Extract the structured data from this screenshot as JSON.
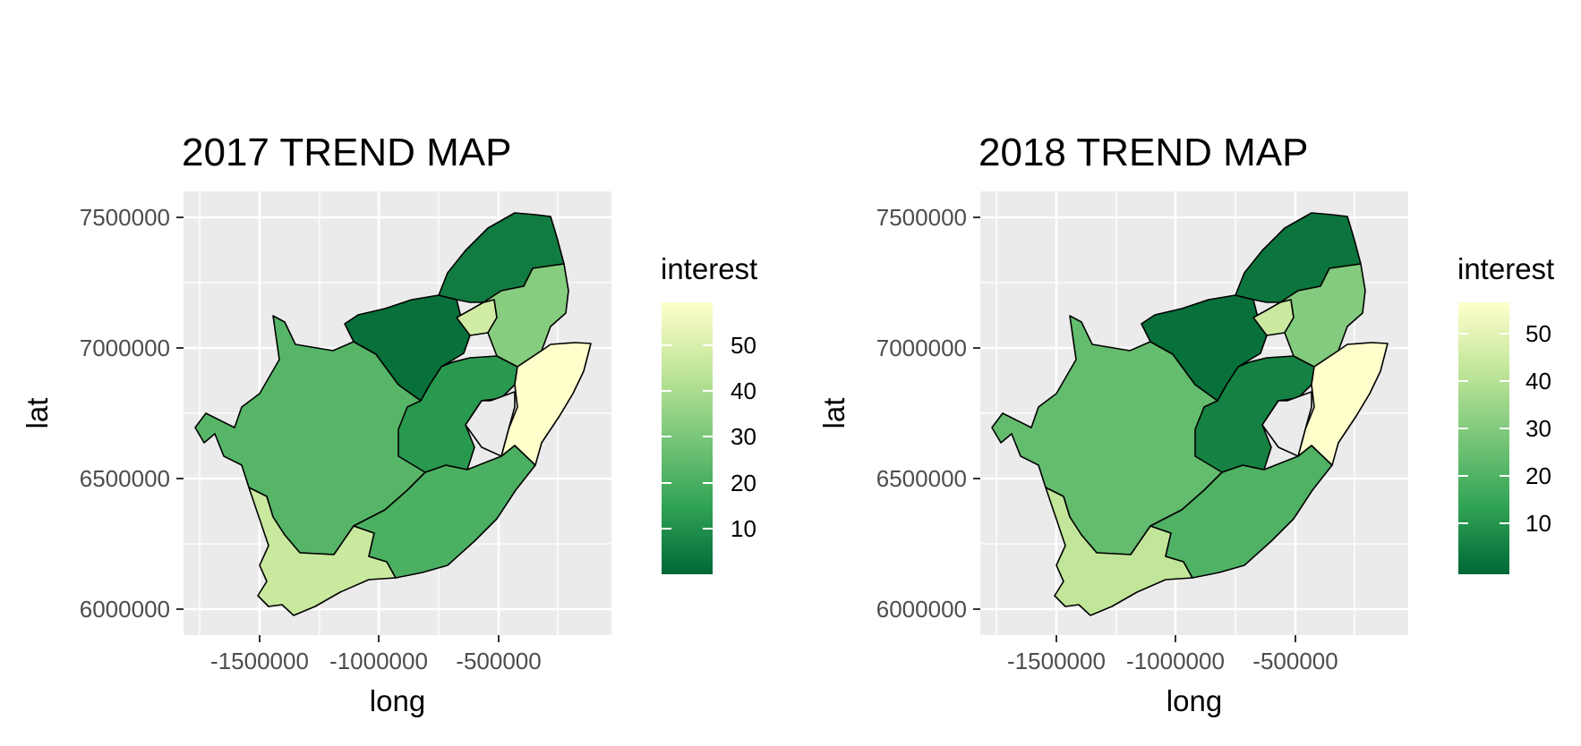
{
  "maps": [
    {
      "title": "2017 TREND MAP",
      "xlabel": "long",
      "ylabel": "lat",
      "x_ticks": [
        "-1500000",
        "-1000000",
        "-500000"
      ],
      "y_ticks": [
        "6000000",
        "6500000",
        "7000000",
        "7500000"
      ],
      "legend": {
        "title": "interest",
        "ticks": [
          "10",
          "20",
          "30",
          "40",
          "50"
        ]
      },
      "regions": [
        {
          "id": "western-cape",
          "interest": 45
        },
        {
          "id": "northern-cape",
          "interest": 22
        },
        {
          "id": "eastern-cape",
          "interest": 20
        },
        {
          "id": "free-state",
          "interest": 12
        },
        {
          "id": "north-west",
          "interest": 2
        },
        {
          "id": "limpopo",
          "interest": 5
        },
        {
          "id": "gauteng",
          "interest": 47
        },
        {
          "id": "mpumalanga",
          "interest": 32
        },
        {
          "id": "kwazulu-natal",
          "interest": 58
        }
      ]
    },
    {
      "title": "2018 TREND MAP",
      "xlabel": "long",
      "ylabel": "lat",
      "x_ticks": [
        "-1500000",
        "-1000000",
        "-500000"
      ],
      "y_ticks": [
        "6000000",
        "6500000",
        "7000000",
        "7500000"
      ],
      "legend": {
        "title": "interest",
        "ticks": [
          "10",
          "20",
          "30",
          "40",
          "50"
        ]
      },
      "regions": [
        {
          "id": "western-cape",
          "interest": 42
        },
        {
          "id": "northern-cape",
          "interest": 24
        },
        {
          "id": "eastern-cape",
          "interest": 20
        },
        {
          "id": "free-state",
          "interest": 6
        },
        {
          "id": "north-west",
          "interest": 2
        },
        {
          "id": "limpopo",
          "interest": 3
        },
        {
          "id": "gauteng",
          "interest": 44
        },
        {
          "id": "mpumalanga",
          "interest": 30
        },
        {
          "id": "kwazulu-natal",
          "interest": 56
        }
      ]
    }
  ],
  "colors": {
    "panel_bg": "#ebebeb",
    "grid": "#ffffff",
    "border": "#000000",
    "scale": [
      "#006837",
      "#31a354",
      "#78c679",
      "#c2e699",
      "#ffffcc"
    ]
  }
}
